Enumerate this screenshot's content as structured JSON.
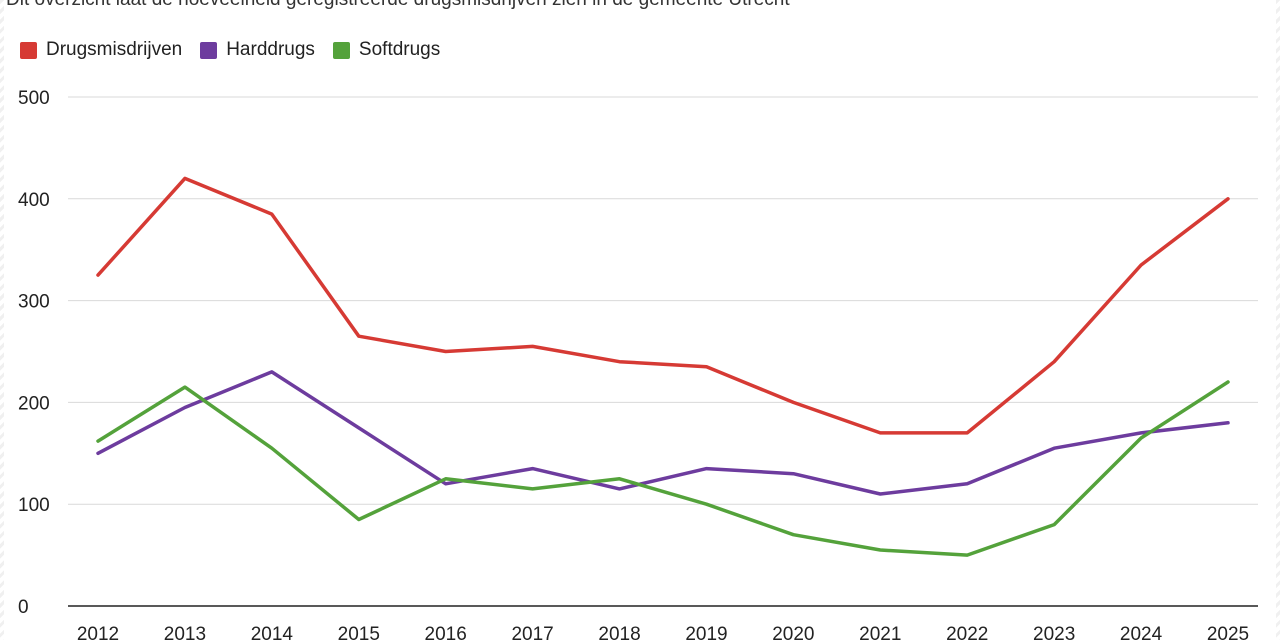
{
  "subtitle": "Dit overzicht laat de hoeveelheid geregistreerde drugsmisdrijven zien in de gemeente Utrecht",
  "colors": {
    "drugsmisdrijven": "#d63a34",
    "harddrugs": "#6d3c9e",
    "softdrugs": "#54a23b",
    "grid": "#d9d9d9",
    "axis": "#222222"
  },
  "chart_data": {
    "type": "line",
    "title": "",
    "subtitle": "Dit overzicht laat de hoeveelheid geregistreerde drugsmisdrijven zien in de gemeente Utrecht",
    "xlabel": "",
    "ylabel": "",
    "x": [
      "2012",
      "2013",
      "2014",
      "2015",
      "2016",
      "2017",
      "2018",
      "2019",
      "2020",
      "2021",
      "2022",
      "2023",
      "2024",
      "2025"
    ],
    "ylim": [
      0,
      500
    ],
    "yticks": [
      0,
      100,
      200,
      300,
      400,
      500
    ],
    "grid": true,
    "legend_position": "top-left",
    "series": [
      {
        "name": "Drugsmisdrijven",
        "color": "#d63a34",
        "values": [
          325,
          420,
          385,
          265,
          250,
          255,
          240,
          235,
          200,
          170,
          170,
          240,
          335,
          400
        ]
      },
      {
        "name": "Harddrugs",
        "color": "#6d3c9e",
        "values": [
          150,
          195,
          230,
          175,
          120,
          135,
          115,
          135,
          130,
          110,
          120,
          155,
          170,
          180
        ]
      },
      {
        "name": "Softdrugs",
        "color": "#54a23b",
        "values": [
          162,
          215,
          155,
          85,
          125,
          115,
          125,
          100,
          70,
          55,
          50,
          80,
          165,
          220
        ]
      }
    ]
  }
}
